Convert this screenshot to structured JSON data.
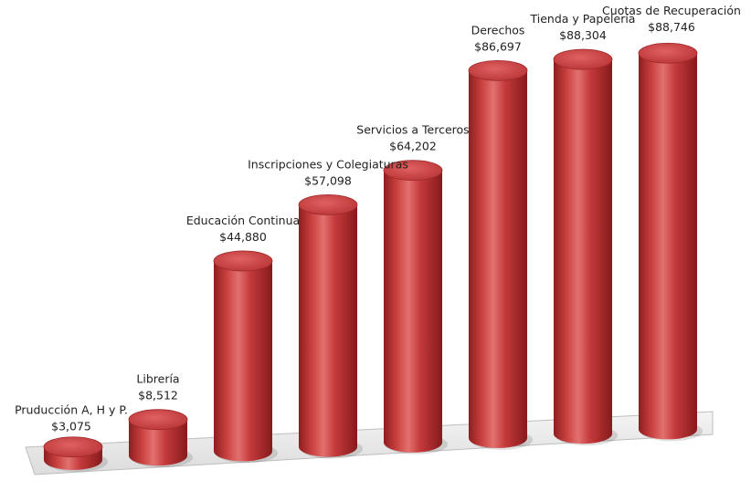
{
  "chart_data": {
    "type": "bar",
    "style": "3d-cylinder",
    "categories": [
      "Pruducción A, H y P.",
      "Librería",
      "Educación Continua",
      "Inscripciones y Colegiaturas",
      "Servicios a Terceros",
      "Derechos",
      "Tienda y Papelería",
      "Cuotas de Recuperación"
    ],
    "values": [
      3075,
      8512,
      44880,
      57098,
      64202,
      86697,
      88304,
      88746
    ],
    "data_labels": [
      "$3,075",
      "$8,512",
      "$44,880",
      "$57,098",
      "$64,202",
      "$86,697",
      "$88,304",
      "$88,746"
    ],
    "title": "",
    "xlabel": "",
    "ylabel": "",
    "ylim": [
      0,
      90000
    ],
    "grid": false,
    "legend": "none",
    "colors": {
      "bar": "#c0383a",
      "bar_top": "#d44a4b",
      "floor": "#e9e9e9"
    }
  }
}
